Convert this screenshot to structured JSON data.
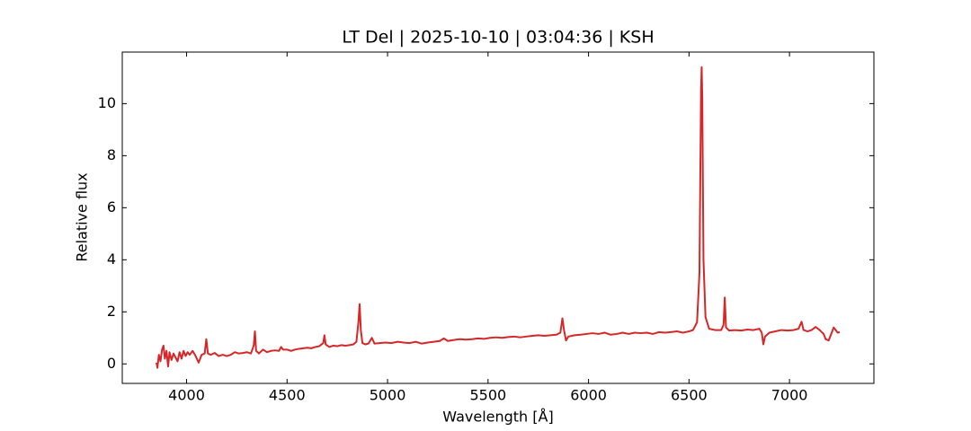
{
  "chart_data": {
    "type": "line",
    "title": "LT Del | 2025-10-10 | 03:04:36 | KSH",
    "x_label": "Wavelength [Å]",
    "y_label": "Relative flux",
    "x": [
      3850,
      3855,
      3862,
      3870,
      3878,
      3885,
      3892,
      3900,
      3908,
      3915,
      3925,
      3935,
      3945,
      3955,
      3965,
      3975,
      3985,
      3995,
      4005,
      4015,
      4030,
      4045,
      4060,
      4075,
      4090,
      4098,
      4106,
      4120,
      4140,
      4160,
      4180,
      4200,
      4220,
      4240,
      4260,
      4280,
      4300,
      4320,
      4334,
      4340,
      4346,
      4360,
      4380,
      4400,
      4420,
      4440,
      4460,
      4470,
      4480,
      4500,
      4520,
      4540,
      4560,
      4580,
      4600,
      4620,
      4640,
      4660,
      4680,
      4686,
      4692,
      4710,
      4730,
      4750,
      4770,
      4790,
      4810,
      4830,
      4845,
      4855,
      4861,
      4867,
      4875,
      4890,
      4905,
      4922,
      4935,
      4960,
      4990,
      5020,
      5050,
      5080,
      5110,
      5140,
      5170,
      5200,
      5230,
      5260,
      5280,
      5300,
      5330,
      5360,
      5390,
      5420,
      5450,
      5480,
      5510,
      5540,
      5570,
      5600,
      5630,
      5660,
      5690,
      5720,
      5750,
      5780,
      5810,
      5840,
      5860,
      5870,
      5878,
      5888,
      5900,
      5930,
      5960,
      5990,
      6020,
      6050,
      6080,
      6110,
      6140,
      6170,
      6200,
      6230,
      6260,
      6290,
      6320,
      6350,
      6380,
      6410,
      6440,
      6470,
      6500,
      6520,
      6540,
      6552,
      6560,
      6563,
      6566,
      6572,
      6582,
      6600,
      6630,
      6660,
      6672,
      6678,
      6684,
      6700,
      6730,
      6760,
      6790,
      6820,
      6850,
      6862,
      6870,
      6878,
      6900,
      6930,
      6960,
      6990,
      7020,
      7045,
      7060,
      7070,
      7090,
      7110,
      7130,
      7150,
      7170,
      7180,
      7195,
      7210,
      7220,
      7230,
      7240,
      7250
    ],
    "series": [
      {
        "name": "LT Del",
        "color": "#d62728",
        "values": [
          0.05,
          -0.15,
          0.35,
          0.1,
          0.55,
          0.7,
          0.2,
          0.5,
          -0.1,
          0.45,
          0.15,
          0.4,
          0.25,
          0.1,
          0.45,
          0.2,
          0.5,
          0.3,
          0.45,
          0.35,
          0.5,
          0.3,
          0.05,
          0.35,
          0.4,
          0.95,
          0.4,
          0.35,
          0.42,
          0.3,
          0.35,
          0.3,
          0.35,
          0.45,
          0.4,
          0.42,
          0.45,
          0.4,
          0.7,
          1.25,
          0.5,
          0.4,
          0.55,
          0.45,
          0.5,
          0.52,
          0.5,
          0.65,
          0.55,
          0.55,
          0.5,
          0.55,
          0.58,
          0.6,
          0.62,
          0.6,
          0.65,
          0.68,
          0.8,
          1.1,
          0.75,
          0.65,
          0.7,
          0.68,
          0.72,
          0.7,
          0.72,
          0.75,
          0.85,
          1.6,
          2.3,
          1.3,
          0.8,
          0.75,
          0.78,
          1.0,
          0.78,
          0.8,
          0.82,
          0.8,
          0.85,
          0.82,
          0.8,
          0.85,
          0.78,
          0.82,
          0.85,
          0.88,
          0.98,
          0.88,
          0.92,
          0.95,
          0.93,
          0.95,
          0.98,
          0.96,
          1.0,
          1.02,
          1.0,
          1.03,
          1.05,
          1.02,
          1.05,
          1.08,
          1.1,
          1.08,
          1.1,
          1.12,
          1.2,
          1.75,
          1.3,
          0.9,
          1.05,
          1.1,
          1.12,
          1.15,
          1.18,
          1.15,
          1.2,
          1.12,
          1.15,
          1.2,
          1.15,
          1.2,
          1.18,
          1.2,
          1.15,
          1.22,
          1.2,
          1.22,
          1.25,
          1.2,
          1.25,
          1.3,
          1.6,
          3.5,
          10.5,
          11.4,
          10.2,
          4.0,
          1.8,
          1.35,
          1.3,
          1.3,
          1.5,
          2.55,
          1.4,
          1.28,
          1.3,
          1.28,
          1.32,
          1.3,
          1.35,
          1.2,
          0.75,
          1.05,
          1.2,
          1.25,
          1.3,
          1.28,
          1.3,
          1.35,
          1.62,
          1.3,
          1.25,
          1.3,
          1.42,
          1.3,
          1.15,
          0.95,
          0.9,
          1.2,
          1.4,
          1.3,
          1.2,
          1.22
        ]
      }
    ],
    "xlim": [
      3680,
      7420
    ],
    "ylim": [
      -0.75,
      11.98
    ],
    "xticks": [
      4000,
      4500,
      5000,
      5500,
      6000,
      6500,
      7000
    ],
    "yticks": [
      0,
      2,
      4,
      6,
      8,
      10
    ]
  }
}
